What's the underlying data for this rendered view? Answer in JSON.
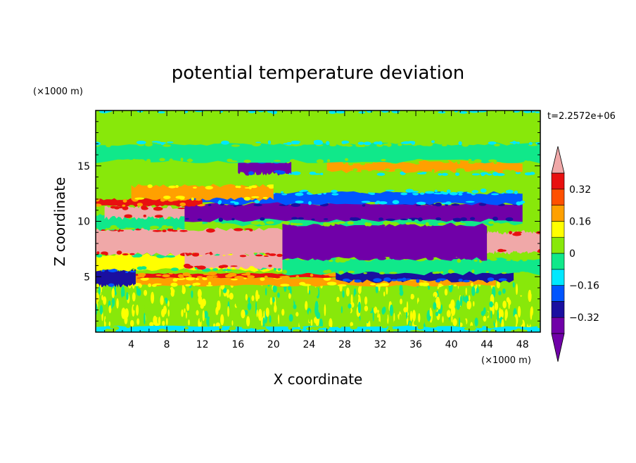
{
  "chart_data": {
    "type": "heatmap",
    "title": "potential temperature deviation",
    "xlabel": "X coordinate",
    "ylabel": "Z coordinate",
    "x_unit": "(×1000 m)",
    "y_unit": "(×1000 m)",
    "time_label": "t=2.2572e+06",
    "xlim": [
      0,
      50
    ],
    "ylim": [
      0,
      20
    ],
    "x_ticks": [
      4,
      8,
      12,
      16,
      20,
      24,
      28,
      32,
      36,
      40,
      44,
      48
    ],
    "y_ticks": [
      5,
      10,
      15
    ],
    "colorbar": {
      "levels": [
        -0.4,
        -0.32,
        -0.24,
        -0.16,
        -0.08,
        0,
        0.08,
        0.16,
        0.24,
        0.32,
        0.4
      ],
      "colors": [
        "#7000a8",
        "#1a0fa0",
        "#0055ff",
        "#00e8ff",
        "#10e88a",
        "#88e80a",
        "#ffff00",
        "#ffa000",
        "#ff5000",
        "#e81010"
      ],
      "over_color": "#f0a8a8",
      "under_color": "#7000a8",
      "tick_labels": [
        "0.32",
        "0.16",
        "0",
        "−0.16",
        "−0.32"
      ],
      "tick_values": [
        0.32,
        0.16,
        0,
        -0.16,
        -0.32
      ]
    },
    "regions": [
      {
        "z": [
          0.5,
          4.5
        ],
        "x": [
          0,
          50
        ],
        "value": 0.02,
        "texture": "mixed"
      },
      {
        "z": [
          0,
          0.5
        ],
        "x": [
          0,
          50
        ],
        "value": -0.12
      },
      {
        "z": [
          4.2,
          4.9
        ],
        "x": [
          4.5,
          45
        ],
        "value": 0.22
      },
      {
        "z": [
          4.9,
          5.3
        ],
        "x": [
          4.5,
          30
        ],
        "value": 0.33
      },
      {
        "z": [
          4.2,
          5.6
        ],
        "x": [
          0,
          4.5
        ],
        "value": -0.28
      },
      {
        "z": [
          5.6,
          7.0
        ],
        "x": [
          0,
          21
        ],
        "value": 0.1
      },
      {
        "z": [
          4.6,
          5.6
        ],
        "x": [
          27,
          47
        ],
        "value": -0.3
      },
      {
        "z": [
          5.3,
          6.6
        ],
        "x": [
          21,
          50
        ],
        "value": -0.08
      },
      {
        "z": [
          7.0,
          9.3
        ],
        "x": [
          0,
          21
        ],
        "value": 0.5
      },
      {
        "z": [
          5.8,
          7.0
        ],
        "x": [
          10,
          21
        ],
        "value": 0.5
      },
      {
        "z": [
          9.3,
          10.5
        ],
        "x": [
          0,
          10
        ],
        "value": -0.05
      },
      {
        "z": [
          10.3,
          11.3
        ],
        "x": [
          1,
          10
        ],
        "value": 0.5
      },
      {
        "z": [
          6.6,
          9.7
        ],
        "x": [
          21,
          44
        ],
        "value": -0.45
      },
      {
        "z": [
          7.2,
          9.0
        ],
        "x": [
          44,
          50
        ],
        "value": 0.5
      },
      {
        "z": [
          9.7,
          10.9
        ],
        "x": [
          12,
          48
        ],
        "value": -0.05
      },
      {
        "z": [
          10.1,
          11.6
        ],
        "x": [
          10,
          48
        ],
        "value": -0.42
      },
      {
        "z": [
          11.6,
          12.6
        ],
        "x": [
          10,
          48
        ],
        "value": -0.2
      },
      {
        "z": [
          11.4,
          12.0
        ],
        "x": [
          0,
          12
        ],
        "value": 0.32
      },
      {
        "z": [
          12.0,
          13.2
        ],
        "x": [
          4,
          20
        ],
        "value": 0.2
      },
      {
        "z": [
          12.6,
          14.4
        ],
        "x": [
          20,
          50
        ],
        "value": 0.02
      },
      {
        "z": [
          14.3,
          15.4
        ],
        "x": [
          16,
          22
        ],
        "value": -0.34
      },
      {
        "z": [
          14.5,
          15.4
        ],
        "x": [
          26,
          48
        ],
        "value": 0.16
      },
      {
        "z": [
          15.4,
          17.0
        ],
        "x": [
          0,
          50
        ],
        "value": -0.05
      },
      {
        "z": [
          17.0,
          20.0
        ],
        "x": [
          0,
          50
        ],
        "value": 0.03
      }
    ]
  }
}
